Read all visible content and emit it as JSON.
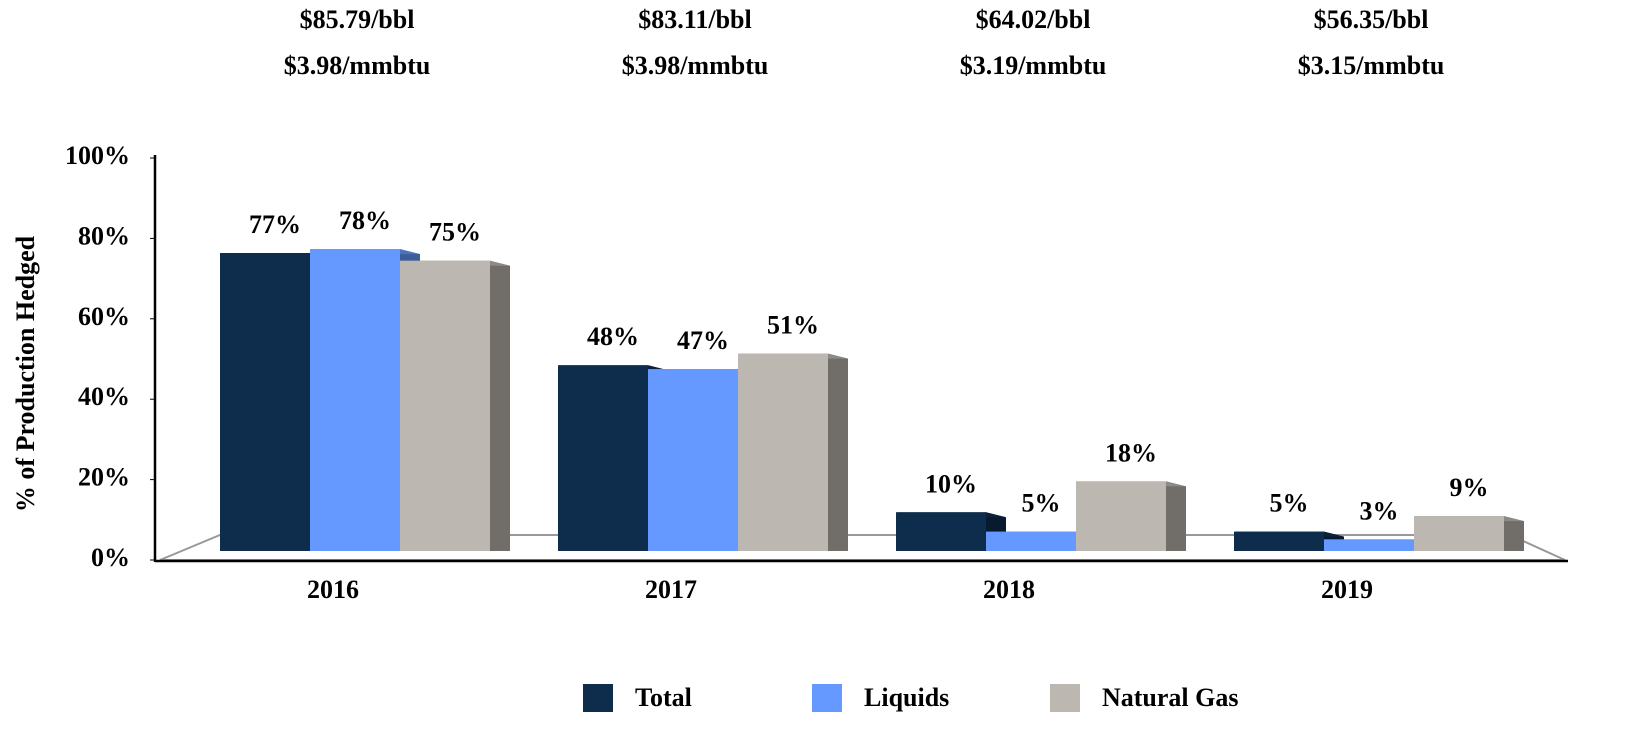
{
  "chart_data": {
    "type": "bar",
    "y_axis_label": "% of Production Hedged",
    "categories": [
      "2016",
      "2017",
      "2018",
      "2019"
    ],
    "price_labels": [
      [
        "$85.79/bbl",
        "$3.98/mmbtu"
      ],
      [
        "$83.11/bbl",
        "$3.98/mmbtu"
      ],
      [
        "$64.02/bbl",
        "$3.19/mmbtu"
      ],
      [
        "$56.35/bbl",
        "$3.15/mmbtu"
      ]
    ],
    "series": [
      {
        "name": "Total",
        "color": "#0e2d4d",
        "values": [
          77,
          48,
          10,
          5
        ],
        "value_labels": [
          "77%",
          "48%",
          "10%",
          "5%"
        ]
      },
      {
        "name": "Liquids",
        "color": "#6699ff",
        "values": [
          78,
          47,
          5,
          3
        ],
        "value_labels": [
          "78%",
          "47%",
          "5%",
          "3%"
        ]
      },
      {
        "name": "Natural Gas",
        "color": "#bcb8b1",
        "values": [
          75,
          51,
          18,
          9
        ],
        "value_labels": [
          "75%",
          "51%",
          "18%",
          "9%"
        ]
      }
    ],
    "ylim": [
      0,
      100
    ],
    "yticks": [
      {
        "value": 0,
        "label": "0%"
      },
      {
        "value": 20,
        "label": "20%"
      },
      {
        "value": 40,
        "label": "40%"
      },
      {
        "value": 60,
        "label": "60%"
      },
      {
        "value": 80,
        "label": "80%"
      },
      {
        "value": 100,
        "label": "100%"
      }
    ],
    "legend": "bottom"
  }
}
